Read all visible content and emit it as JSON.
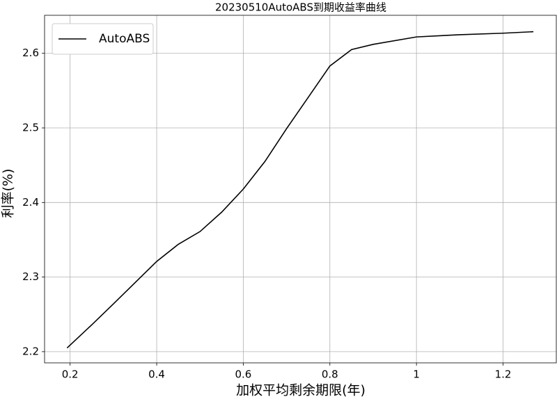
{
  "chart_data": {
    "type": "line",
    "title": "20230510AutoABS到期收益率曲线",
    "x_label": "加权平均剩余期限(年)",
    "y_label": "利率(%)",
    "x": [
      0.193,
      0.25,
      0.3,
      0.4,
      0.45,
      0.5,
      0.55,
      0.6,
      0.65,
      0.7,
      0.75,
      0.8,
      0.85,
      0.9,
      1.0,
      1.1,
      1.2,
      1.27
    ],
    "series": [
      {
        "name": "AutoABS",
        "color": "#000000",
        "values": [
          2.205,
          2.236,
          2.264,
          2.321,
          2.344,
          2.361,
          2.387,
          2.418,
          2.455,
          2.499,
          2.541,
          2.583,
          2.605,
          2.612,
          2.622,
          2.625,
          2.627,
          2.629
        ]
      }
    ],
    "xlim": [
      0.141,
      1.323
    ],
    "ylim": [
      2.185,
      2.651
    ],
    "xticks": [
      0.2,
      0.4,
      0.6,
      0.8,
      1.0,
      1.2
    ],
    "yticks": [
      2.2,
      2.3,
      2.4,
      2.5,
      2.6
    ],
    "grid": true,
    "legend": "upper left"
  }
}
